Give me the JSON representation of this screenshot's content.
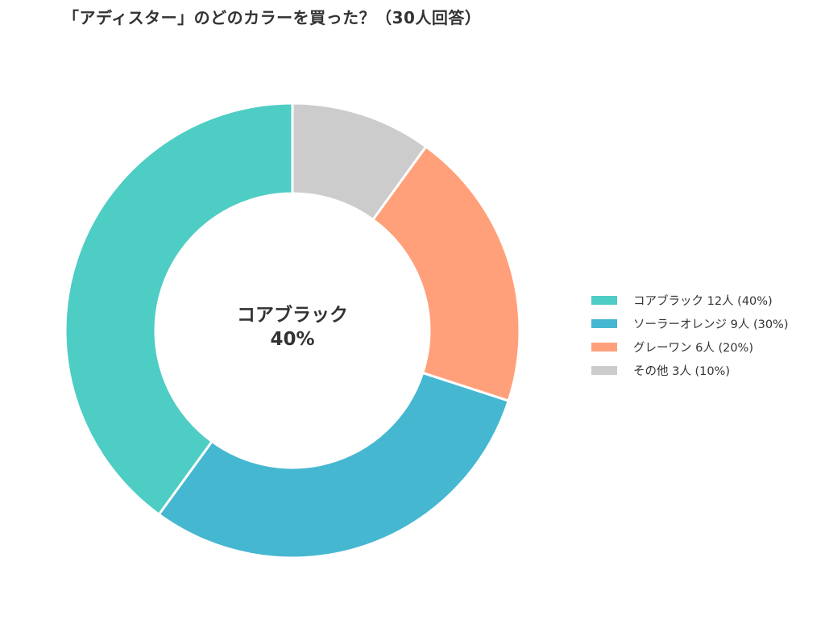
{
  "chart_data": {
    "type": "pie",
    "variant": "donut",
    "title": "「アディスター」のどのカラーを買った？（30人回答）",
    "total_respondents": 30,
    "start_angle": "12 o'clock",
    "direction": "counterclockwise from top for first legend item (teal on left), clockwise from top: その他, グレーワン, ソーラーオレンジ, コアブラック",
    "categories": [
      "コアブラック",
      "ソーラーオレンジ",
      "グレーワン",
      "その他"
    ],
    "values": [
      12,
      9,
      6,
      3
    ],
    "percentages": [
      40,
      30,
      20,
      10
    ],
    "colors": [
      "#4ecdc4",
      "#45b7d1",
      "#ffa07a",
      "#cccccc"
    ],
    "legend": [
      "コアブラック  12人 (40%)",
      "ソーラーオレンジ  9人 (30%)",
      "グレーワン  6人 (20%)",
      "その他  3人 (10%)"
    ],
    "legend_position": "right",
    "center_annotation": {
      "name": "コアブラック",
      "percent": "40%"
    }
  },
  "title": "「アディスター」のどのカラーを買った？（30人回答）",
  "center": {
    "name": "コアブラック",
    "percent": "40%"
  },
  "legend": [
    {
      "label": "コアブラック  12人 (40%)",
      "color": "#4ecdc4"
    },
    {
      "label": "ソーラーオレンジ  9人 (30%)",
      "color": "#45b7d1"
    },
    {
      "label": "グレーワン  6人 (20%)",
      "color": "#ffa07a"
    },
    {
      "label": "その他  3人 (10%)",
      "color": "#cccccc"
    }
  ]
}
